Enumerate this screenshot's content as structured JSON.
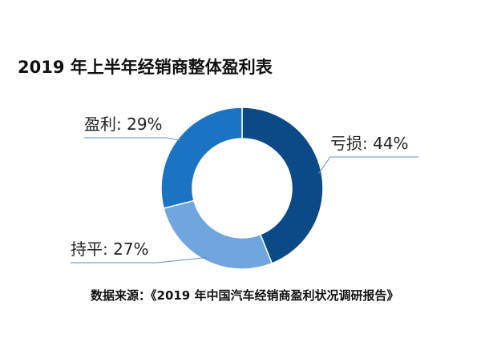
{
  "chart_data": {
    "type": "pie",
    "title": "2019 年上半年经销商整体盈利表",
    "donut": true,
    "slices": [
      {
        "label": "亏损",
        "value": 44,
        "value_label": "44%",
        "display": "亏损: 44%",
        "color": "#0b4a87"
      },
      {
        "label": "持平",
        "value": 27,
        "value_label": "27%",
        "display": "持平: 27%",
        "color": "#6fa6dd"
      },
      {
        "label": "盈利",
        "value": 29,
        "value_label": "29%",
        "display": "盈利: 29%",
        "color": "#1b73c4"
      }
    ],
    "source": "数据来源：《2019 年中国汽车经销商盈利状况调研报告》",
    "leader_line_color": "#5b8fc7"
  }
}
